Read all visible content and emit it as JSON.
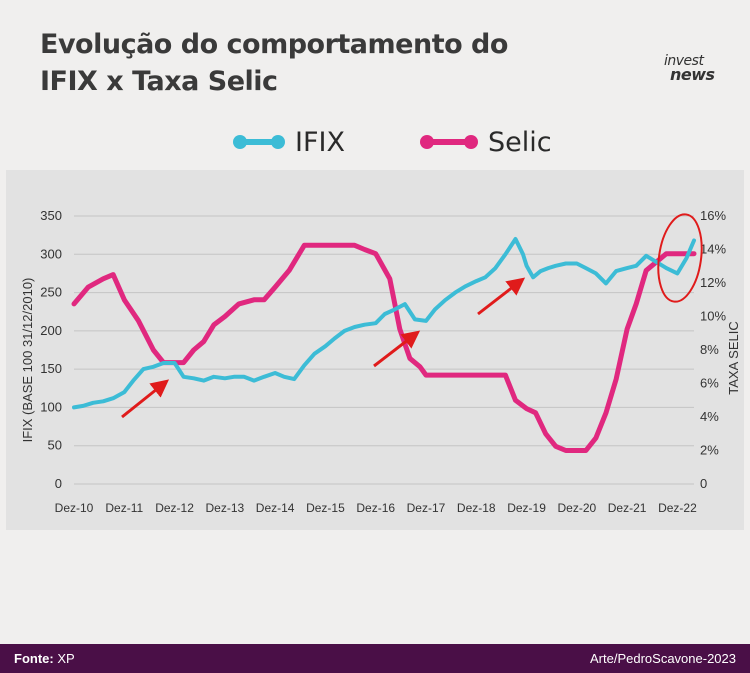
{
  "title_line1": "Evolução do comportamento do",
  "title_line2": "IFIX x Taxa Selic",
  "logo": {
    "line1": "invest",
    "line2": "news"
  },
  "legend": [
    {
      "name": "IFIX",
      "color": "#3cbcd6"
    },
    {
      "name": "Selic",
      "color": "#e0287f"
    }
  ],
  "footer": {
    "source_label": "Fonte:",
    "source_value": "XP",
    "credit": "Arte/PedroScavone-2023"
  },
  "chart_data": {
    "type": "line",
    "x_ticks": [
      "Dez-10",
      "Dez-11",
      "Dez-12",
      "Dez-13",
      "Dez-14",
      "Dez-15",
      "Dez-16",
      "Dez-17",
      "Dez-18",
      "Dez-19",
      "Dez-20",
      "Dez-21",
      "Dez-22"
    ],
    "left_axis": {
      "label": "IFIX (BASE 100  31/12/2010)",
      "ticks": [
        "0",
        "50",
        "100",
        "150",
        "200",
        "250",
        "300",
        "350"
      ],
      "ylim": [
        0,
        350
      ]
    },
    "right_axis": {
      "label": "TAXA SELIC",
      "ticks": [
        "0",
        "2%",
        "4%",
        "6%",
        "8%",
        "10%",
        "12%",
        "14%",
        "16%"
      ],
      "ylim": [
        0,
        16
      ]
    },
    "grid": "horizontal",
    "series": [
      {
        "name": "IFIX",
        "axis": "left",
        "color": "#3cbcd6",
        "x": [
          2010.92,
          2011.1,
          2011.3,
          2011.5,
          2011.7,
          2011.92,
          2012.1,
          2012.3,
          2012.5,
          2012.7,
          2012.92,
          2013.1,
          2013.3,
          2013.5,
          2013.7,
          2013.92,
          2014.1,
          2014.3,
          2014.5,
          2014.7,
          2014.92,
          2015.1,
          2015.3,
          2015.5,
          2015.7,
          2015.92,
          2016.1,
          2016.3,
          2016.5,
          2016.7,
          2016.92,
          2017.1,
          2017.3,
          2017.5,
          2017.7,
          2017.92,
          2018.1,
          2018.3,
          2018.5,
          2018.7,
          2018.92,
          2019.1,
          2019.3,
          2019.5,
          2019.7,
          2019.85,
          2019.92,
          2020.05,
          2020.2,
          2020.35,
          2020.5,
          2020.7,
          2020.92,
          2021.1,
          2021.3,
          2021.5,
          2021.7,
          2021.92,
          2022.1,
          2022.3,
          2022.5,
          2022.7,
          2022.92,
          2023.1,
          2023.25
        ],
        "values": [
          100,
          102,
          106,
          108,
          112,
          120,
          135,
          150,
          153,
          158,
          158,
          140,
          138,
          135,
          140,
          138,
          140,
          140,
          135,
          140,
          145,
          140,
          137,
          155,
          170,
          180,
          190,
          200,
          205,
          208,
          210,
          222,
          228,
          235,
          215,
          213,
          228,
          240,
          250,
          258,
          265,
          270,
          282,
          300,
          320,
          300,
          285,
          270,
          278,
          282,
          285,
          288,
          288,
          282,
          275,
          262,
          278,
          282,
          285,
          298,
          290,
          282,
          275,
          295,
          318
        ]
      },
      {
        "name": "Selic",
        "axis": "right",
        "color": "#e0287f",
        "x": [
          2010.92,
          2011.2,
          2011.5,
          2011.7,
          2011.92,
          2012.2,
          2012.5,
          2012.7,
          2012.92,
          2013.1,
          2013.3,
          2013.5,
          2013.7,
          2013.92,
          2014.2,
          2014.5,
          2014.7,
          2014.92,
          2015.2,
          2015.5,
          2015.7,
          2015.92,
          2016.2,
          2016.5,
          2016.7,
          2016.92,
          2017.2,
          2017.4,
          2017.6,
          2017.8,
          2017.92,
          2018.2,
          2018.5,
          2018.92,
          2019.2,
          2019.5,
          2019.7,
          2019.92,
          2020.1,
          2020.3,
          2020.5,
          2020.7,
          2020.92,
          2021.1,
          2021.3,
          2021.5,
          2021.7,
          2021.92,
          2022.1,
          2022.3,
          2022.5,
          2022.7,
          2022.92,
          2023.25
        ],
        "values": [
          10.75,
          11.75,
          12.25,
          12.5,
          11.0,
          9.75,
          8.0,
          7.25,
          7.25,
          7.25,
          8.0,
          8.5,
          9.5,
          10.0,
          10.75,
          11.0,
          11.0,
          11.75,
          12.75,
          14.25,
          14.25,
          14.25,
          14.25,
          14.25,
          14.0,
          13.75,
          12.25,
          9.25,
          7.5,
          7.0,
          6.5,
          6.5,
          6.5,
          6.5,
          6.5,
          6.5,
          5.0,
          4.5,
          4.25,
          3.0,
          2.25,
          2.0,
          2.0,
          2.0,
          2.75,
          4.25,
          6.25,
          9.25,
          10.75,
          12.75,
          13.25,
          13.75,
          13.75,
          13.75
        ]
      }
    ],
    "annotations": [
      {
        "type": "arrow",
        "near_x": "Dez-12"
      },
      {
        "type": "arrow",
        "near_x": "Dez-17"
      },
      {
        "type": "arrow",
        "near_x": "Dez-19"
      },
      {
        "type": "ellipse",
        "near_x": "Dez-22"
      }
    ]
  }
}
